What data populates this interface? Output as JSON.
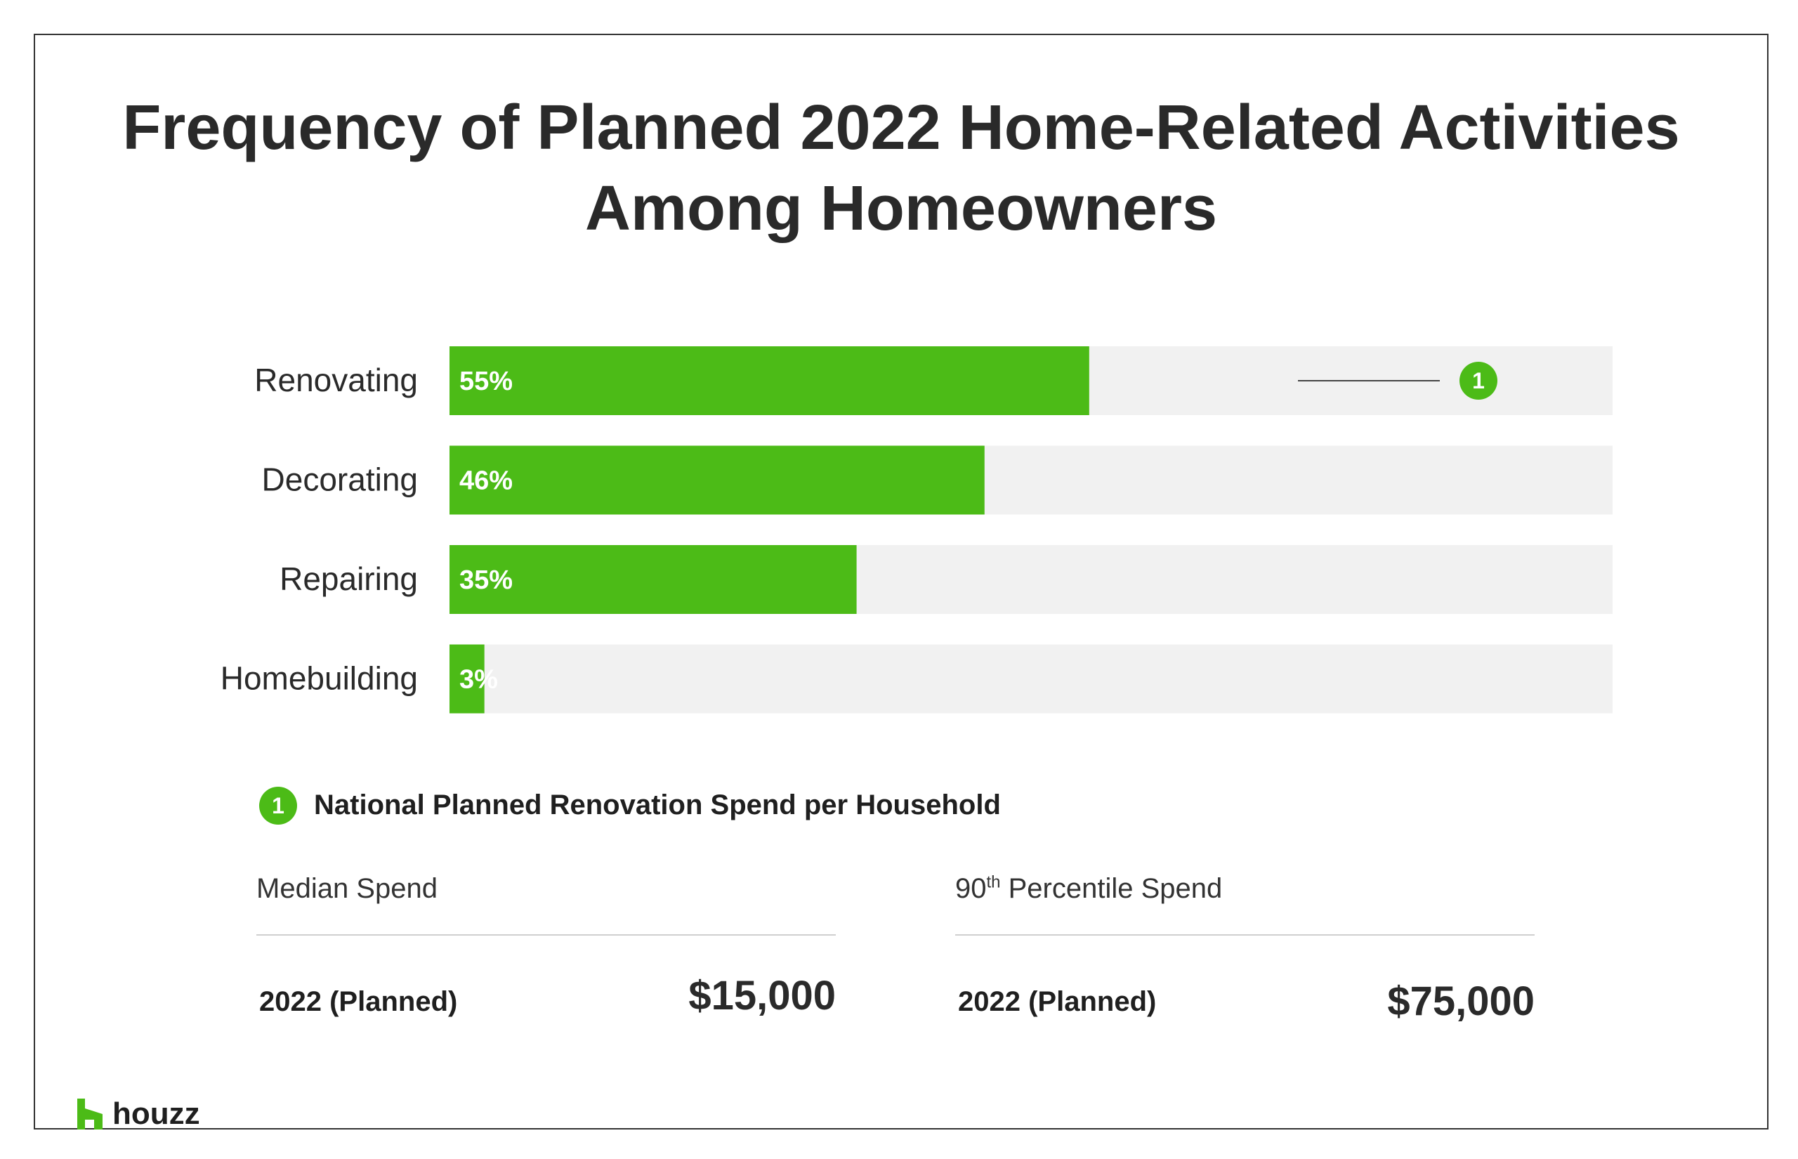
{
  "title": {
    "line1": "Frequency of Planned 2022 Home-Related Activities",
    "line2": "Among Homeowners"
  },
  "chart_data": {
    "type": "bar",
    "orientation": "horizontal",
    "categories": [
      "Renovating",
      "Decorating",
      "Repairing",
      "Homebuilding"
    ],
    "values": [
      55,
      46,
      35,
      3
    ],
    "value_labels": [
      "55%",
      "46%",
      "35%",
      "3%"
    ],
    "xlim": [
      0,
      100
    ],
    "bar_color": "#4cbb17",
    "track_color": "#f1f1f1",
    "grid": false,
    "annotation": {
      "category": "Renovating",
      "marker": "1"
    }
  },
  "footnote": {
    "marker": "1",
    "title": "National Planned Renovation Spend per Household"
  },
  "spend": {
    "median": {
      "heading": "Median Spend",
      "row_label": "2022 (Planned)",
      "value": "$15,000"
    },
    "percentile90": {
      "heading_number": "90",
      "heading_suffix": "th",
      "heading_rest": " Percentile Spend",
      "row_label": "2022 (Planned)",
      "value": "$75,000"
    }
  },
  "brand": {
    "name": "houzz",
    "logo_icon": "houzz-h-icon",
    "accent": "#4cbb17"
  }
}
